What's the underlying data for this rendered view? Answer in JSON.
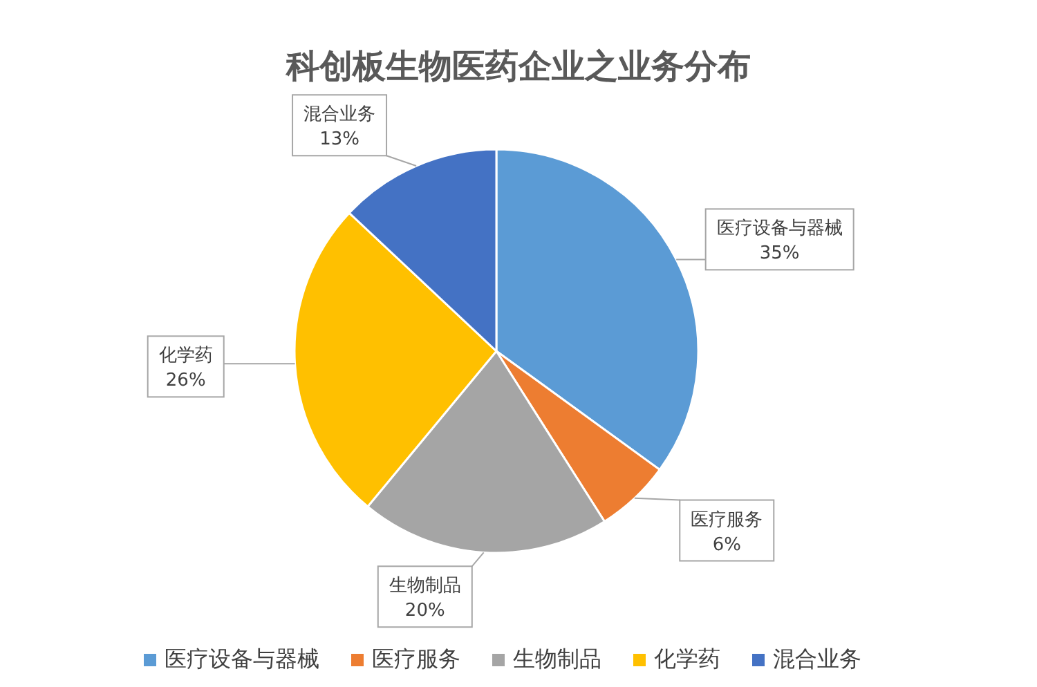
{
  "chart_data": {
    "type": "pie",
    "title": "科创板生物医药企业之业务分布",
    "categories": [
      "医疗设备与器械",
      "医疗服务",
      "生物制品",
      "化学药",
      "混合业务"
    ],
    "values": [
      35,
      6,
      20,
      26,
      13
    ],
    "colors": [
      "#5b9bd5",
      "#ed7d31",
      "#a5a5a5",
      "#ffc000",
      "#4472c4"
    ],
    "value_labels": [
      "35%",
      "6%",
      "20%",
      "26%",
      "13%"
    ],
    "legend": "bottom"
  }
}
